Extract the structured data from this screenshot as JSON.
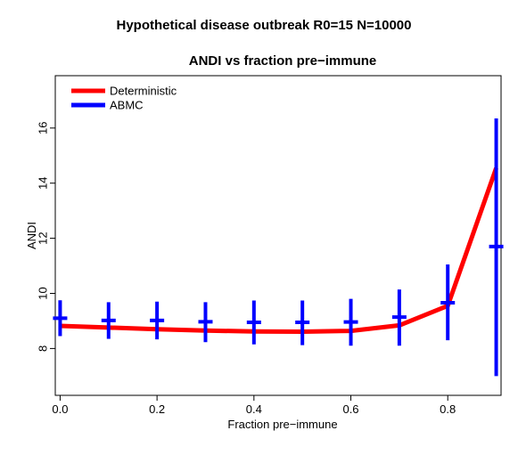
{
  "figure": {
    "suptitle": "Hypothetical disease outbreak R0=15  N=10000"
  },
  "chart_data": {
    "type": "line",
    "title": "ANDI vs fraction pre−immune",
    "xlabel": "Fraction pre−immune",
    "ylabel": "ANDI",
    "xlim": [
      -0.01,
      0.91
    ],
    "ylim": [
      6.3,
      17.9
    ],
    "xticks": [
      0.0,
      0.2,
      0.4,
      0.6,
      0.8
    ],
    "xtick_labels": [
      "0.0",
      "0.2",
      "0.4",
      "0.6",
      "0.8"
    ],
    "yticks": [
      8,
      10,
      12,
      14,
      16
    ],
    "ytick_labels": [
      "8",
      "10",
      "12",
      "14",
      "16"
    ],
    "grid": false,
    "legend_position": "top-left",
    "x": [
      0.0,
      0.1,
      0.2,
      0.3,
      0.4,
      0.5,
      0.6,
      0.7,
      0.8,
      0.9
    ],
    "series": [
      {
        "name": "Deterministic",
        "color": "#ff0000",
        "style": "line",
        "values": [
          8.82,
          8.76,
          8.7,
          8.65,
          8.62,
          8.61,
          8.64,
          8.84,
          9.55,
          14.55
        ]
      },
      {
        "name": "ABMC",
        "color": "#0000ff",
        "style": "errorbar",
        "values": [
          9.1,
          9.02,
          9.02,
          8.97,
          8.95,
          8.95,
          8.96,
          9.14,
          9.66,
          11.7
        ],
        "lower": [
          8.45,
          8.35,
          8.33,
          8.23,
          8.15,
          8.12,
          8.1,
          8.1,
          8.3,
          7.0
        ],
        "upper": [
          9.75,
          9.68,
          9.7,
          9.68,
          9.74,
          9.74,
          9.8,
          10.14,
          11.05,
          16.35
        ]
      }
    ]
  }
}
